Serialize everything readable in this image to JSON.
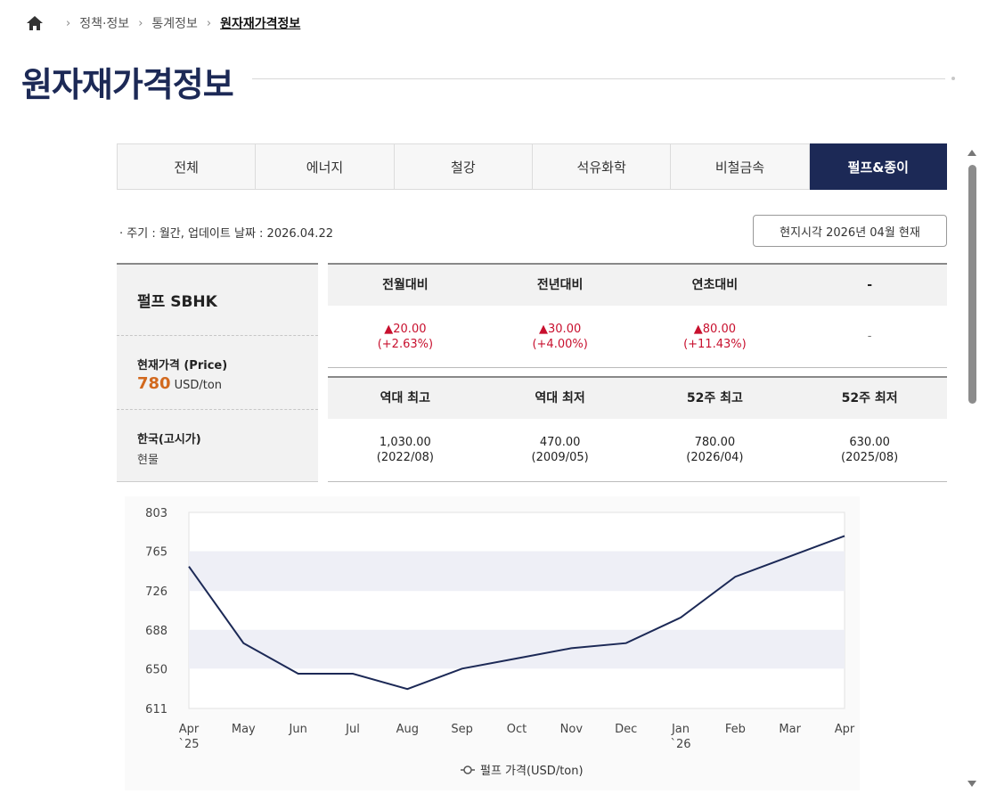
{
  "breadcrumb": {
    "items": [
      "정책·정보",
      "통계정보"
    ],
    "current": "원자재가격정보"
  },
  "page": {
    "title": "원자재가격정보"
  },
  "tabs": [
    {
      "label": "전체",
      "active": false
    },
    {
      "label": "에너지",
      "active": false
    },
    {
      "label": "철강",
      "active": false
    },
    {
      "label": "석유화학",
      "active": false
    },
    {
      "label": "비철금속",
      "active": false
    },
    {
      "label": "펄프&종이",
      "active": true
    }
  ],
  "meta": {
    "info": "· 주기 : 월간, 업데이트 날짜 : 2026.04.22",
    "local_time": "현지시각 2026년 04월 현재"
  },
  "item": {
    "name": "펄프 SBHK",
    "price_label": "현재가격 (Price)",
    "price_value": "780",
    "price_unit": "USD/ton",
    "market_label": "한국(고시가)",
    "market_sub": "현물"
  },
  "change_table": {
    "headers": [
      "전월대비",
      "전년대비",
      "연초대비",
      "-"
    ],
    "cells": [
      {
        "value": "▲20.00",
        "pct": "(+2.63%)"
      },
      {
        "value": "▲30.00",
        "pct": "(+4.00%)"
      },
      {
        "value": "▲80.00",
        "pct": "(+11.43%)"
      },
      {
        "value": "-",
        "pct": ""
      }
    ]
  },
  "record_table": {
    "headers": [
      "역대 최고",
      "역대 최저",
      "52주 최고",
      "52주 최저"
    ],
    "cells": [
      {
        "value": "1,030.00",
        "date": "(2022/08)"
      },
      {
        "value": "470.00",
        "date": "(2009/05)"
      },
      {
        "value": "780.00",
        "date": "(2026/04)"
      },
      {
        "value": "630.00",
        "date": "(2025/08)"
      }
    ]
  },
  "colors": {
    "navy": "#1c2956",
    "up": "#c8102e",
    "price": "#d2691e"
  },
  "chart_data": {
    "type": "line",
    "x": [
      "Apr",
      "May",
      "Jun",
      "Jul",
      "Aug",
      "Sep",
      "Oct",
      "Nov",
      "Dec",
      "Jan",
      "Feb",
      "Mar",
      "Apr"
    ],
    "x_sub": [
      "`25",
      "",
      "",
      "",
      "",
      "",
      "",
      "",
      "",
      "`26",
      "",
      "",
      ""
    ],
    "series": [
      {
        "name": "펄프 가격(USD/ton)",
        "values": [
          750,
          675,
          645,
          645,
          630,
          650,
          660,
          670,
          675,
          700,
          740,
          760,
          780
        ]
      }
    ],
    "yticks": [
      803,
      765,
      726,
      688,
      650,
      611
    ],
    "ylim": [
      611,
      803
    ],
    "legend": "bottom",
    "banded_grid": true
  }
}
